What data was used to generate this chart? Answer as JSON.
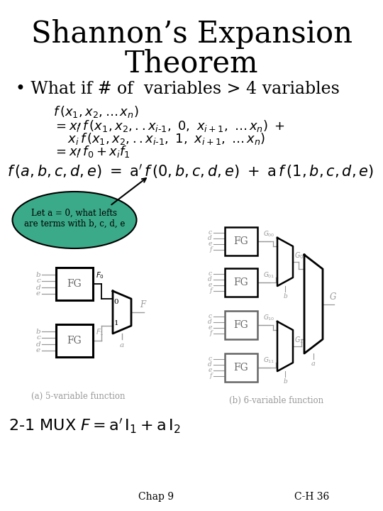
{
  "title_line1": "Shannon’s Expansion",
  "title_line2": "Theorem",
  "bullet": "• What if # of  variables > 4 variables",
  "bg_color": "#ffffff",
  "text_color": "#000000",
  "gray_color": "#999999",
  "dark_gray": "#666666",
  "teal_color": "#3aaa88",
  "title_fontsize": 30,
  "bullet_fontsize": 17,
  "formula_fontsize": 13,
  "big_formula_fontsize": 15,
  "mux_fontsize": 16,
  "footer_fontsize": 10
}
